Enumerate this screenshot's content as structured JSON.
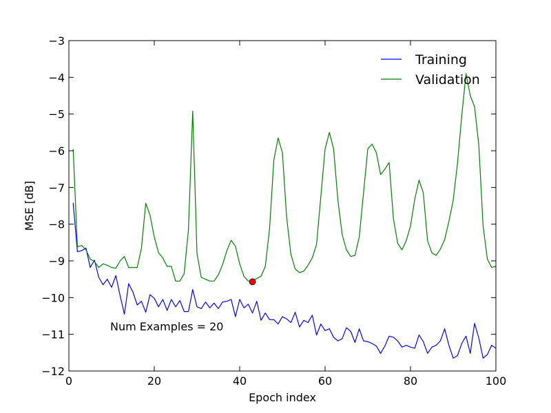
{
  "chart_data": {
    "type": "line",
    "title": "",
    "xlabel": "Epoch index",
    "ylabel": "MSE [dB]",
    "xlim": [
      0,
      100
    ],
    "ylim": [
      -12,
      -3
    ],
    "xticks": [
      0,
      20,
      40,
      60,
      80,
      100
    ],
    "xtick_labels": [
      "0",
      "20",
      "40",
      "60",
      "80",
      "100"
    ],
    "yticks": [
      -12,
      -11,
      -10,
      -9,
      -8,
      -7,
      -6,
      -5,
      -4,
      -3
    ],
    "ytick_labels": [
      "−12",
      "−11",
      "−10",
      "−9",
      "−8",
      "−7",
      "−6",
      "−5",
      "−4",
      "−3"
    ],
    "grid": false,
    "legend_position": "top-right",
    "annotation": "Num Examples = 20",
    "series": [
      {
        "name": "Training",
        "color": "#0000ff",
        "x": [
          1,
          2,
          3,
          4,
          5,
          6,
          7,
          8,
          9,
          10,
          11,
          12,
          13,
          14,
          15,
          16,
          17,
          18,
          19,
          20,
          21,
          22,
          23,
          24,
          25,
          26,
          27,
          28,
          29,
          30,
          31,
          32,
          33,
          34,
          35,
          36,
          37,
          38,
          39,
          40,
          41,
          42,
          43,
          44,
          45,
          46,
          47,
          48,
          49,
          50,
          51,
          52,
          53,
          54,
          55,
          56,
          57,
          58,
          59,
          60,
          61,
          62,
          63,
          64,
          65,
          66,
          67,
          68,
          69,
          70,
          71,
          72,
          73,
          74,
          75,
          76,
          77,
          78,
          79,
          80,
          81,
          82,
          83,
          84,
          85,
          86,
          87,
          88,
          89,
          90,
          91,
          92,
          93,
          94,
          95,
          96,
          97,
          98,
          99,
          100
        ],
        "values": [
          -7.42,
          -8.75,
          -8.72,
          -8.65,
          -9.18,
          -8.98,
          -9.45,
          -9.65,
          -9.5,
          -9.72,
          -9.4,
          -9.95,
          -10.45,
          -9.62,
          -9.85,
          -10.2,
          -10.1,
          -10.4,
          -9.92,
          -10.02,
          -10.25,
          -10.05,
          -10.35,
          -10.05,
          -10.25,
          -10.08,
          -10.38,
          -10.38,
          -9.78,
          -10.25,
          -10.3,
          -10.12,
          -10.28,
          -10.15,
          -10.3,
          -10.12,
          -10.1,
          -10.05,
          -10.52,
          -10.05,
          -10.28,
          -10.18,
          -10.42,
          -10.1,
          -10.62,
          -10.42,
          -10.6,
          -10.6,
          -10.72,
          -10.52,
          -10.58,
          -10.68,
          -10.4,
          -10.8,
          -10.62,
          -10.68,
          -10.48,
          -11.02,
          -10.72,
          -10.9,
          -10.85,
          -11.08,
          -11.18,
          -11.12,
          -10.82,
          -10.92,
          -11.22,
          -10.85,
          -11.18,
          -11.2,
          -11.25,
          -11.32,
          -11.52,
          -11.32,
          -11.05,
          -11.08,
          -11.18,
          -11.35,
          -11.3,
          -11.35,
          -11.38,
          -11.02,
          -11.2,
          -11.52,
          -11.35,
          -11.3,
          -11.18,
          -10.85,
          -11.3,
          -11.65,
          -11.58,
          -11.25,
          -11.05,
          -11.52,
          -10.7,
          -11.1,
          -11.65,
          -11.55,
          -11.3,
          -11.38
        ]
      },
      {
        "name": "Validation",
        "color": "#008000",
        "x": [
          1,
          2,
          3,
          4,
          5,
          6,
          7,
          8,
          9,
          10,
          11,
          12,
          13,
          14,
          15,
          16,
          17,
          18,
          19,
          20,
          21,
          22,
          23,
          24,
          25,
          26,
          27,
          28,
          29,
          30,
          31,
          32,
          33,
          34,
          35,
          36,
          37,
          38,
          39,
          40,
          41,
          42,
          43,
          44,
          45,
          46,
          47,
          48,
          49,
          50,
          51,
          52,
          53,
          54,
          55,
          56,
          57,
          58,
          59,
          60,
          61,
          62,
          63,
          64,
          65,
          66,
          67,
          68,
          69,
          70,
          71,
          72,
          73,
          74,
          75,
          76,
          77,
          78,
          79,
          80,
          81,
          82,
          83,
          84,
          85,
          86,
          87,
          88,
          89,
          90,
          91,
          92,
          93,
          94,
          95,
          96,
          97,
          98,
          99,
          100
        ],
        "values": [
          -5.95,
          -8.62,
          -8.58,
          -8.7,
          -8.95,
          -9.02,
          -9.18,
          -9.08,
          -9.12,
          -9.18,
          -9.2,
          -9.0,
          -8.88,
          -9.18,
          -9.18,
          -9.18,
          -8.65,
          -7.43,
          -7.75,
          -8.35,
          -8.78,
          -8.92,
          -9.15,
          -9.15,
          -9.55,
          -9.55,
          -9.35,
          -8.15,
          -4.92,
          -8.8,
          -9.45,
          -9.5,
          -9.55,
          -9.55,
          -9.38,
          -9.1,
          -8.72,
          -8.44,
          -8.6,
          -9.08,
          -9.42,
          -9.55,
          -9.55,
          -9.48,
          -9.42,
          -9.15,
          -8.12,
          -6.25,
          -5.65,
          -6.05,
          -7.82,
          -8.82,
          -9.22,
          -9.32,
          -9.28,
          -9.12,
          -8.92,
          -8.55,
          -7.25,
          -5.95,
          -5.5,
          -5.95,
          -7.35,
          -8.28,
          -8.7,
          -8.88,
          -8.85,
          -8.35,
          -7.15,
          -5.95,
          -5.82,
          -6.05,
          -6.65,
          -6.5,
          -6.32,
          -7.85,
          -8.52,
          -8.7,
          -8.45,
          -8.05,
          -7.32,
          -6.8,
          -7.15,
          -8.45,
          -8.78,
          -8.85,
          -8.68,
          -8.42,
          -7.92,
          -7.35,
          -6.35,
          -5.05,
          -3.9,
          -4.5,
          -4.8,
          -5.85,
          -8.05,
          -8.95,
          -9.18,
          -9.15
        ]
      }
    ],
    "highlight_point": {
      "x": 43,
      "y": -9.57,
      "color": "#ff0000"
    }
  }
}
